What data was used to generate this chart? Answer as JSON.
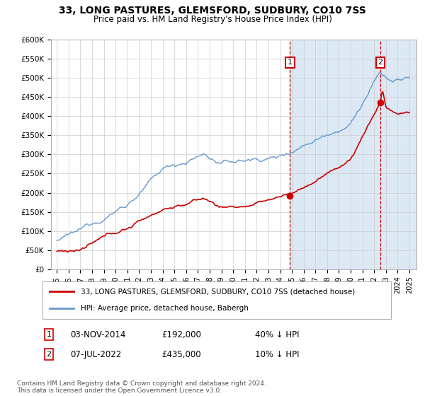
{
  "title": "33, LONG PASTURES, GLEMSFORD, SUDBURY, CO10 7SS",
  "subtitle": "Price paid vs. HM Land Registry's House Price Index (HPI)",
  "ylim": [
    0,
    600000
  ],
  "yticks": [
    0,
    50000,
    100000,
    150000,
    200000,
    250000,
    300000,
    350000,
    400000,
    450000,
    500000,
    550000,
    600000
  ],
  "ytick_labels": [
    "£0",
    "£50K",
    "£100K",
    "£150K",
    "£200K",
    "£250K",
    "£300K",
    "£350K",
    "£400K",
    "£450K",
    "£500K",
    "£550K",
    "£600K"
  ],
  "xtick_years": [
    1995,
    1996,
    1997,
    1998,
    1999,
    2000,
    2001,
    2002,
    2003,
    2004,
    2005,
    2006,
    2007,
    2008,
    2009,
    2010,
    2011,
    2012,
    2013,
    2014,
    2015,
    2016,
    2017,
    2018,
    2019,
    2020,
    2021,
    2022,
    2023,
    2024,
    2025
  ],
  "sale1_x": 2014.84,
  "sale1_y": 192000,
  "sale2_x": 2022.52,
  "sale2_y": 435000,
  "sale1_label": "03-NOV-2014",
  "sale1_price": "£192,000",
  "sale1_note": "40% ↓ HPI",
  "sale2_label": "07-JUL-2022",
  "sale2_price": "£435,000",
  "sale2_note": "10% ↓ HPI",
  "legend1": "33, LONG PASTURES, GLEMSFORD, SUDBURY, CO10 7SS (detached house)",
  "legend2": "HPI: Average price, detached house, Babergh",
  "line_red": "#cc0000",
  "line_blue": "#6699cc",
  "shade_blue": "#dce9f5",
  "footer": "Contains HM Land Registry data © Crown copyright and database right 2024.\nThis data is licensed under the Open Government Licence v3.0.",
  "background_color": "#ffffff",
  "grid_color": "#cccccc"
}
